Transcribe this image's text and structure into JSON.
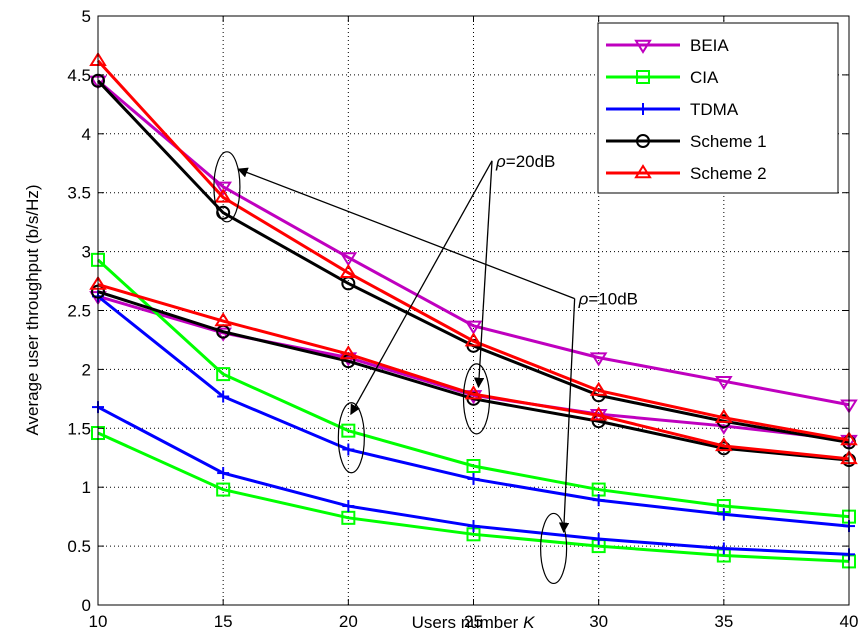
{
  "chart_data": {
    "type": "line",
    "xlabel": "Users number K",
    "xlabel_parts": [
      "Users number ",
      "K"
    ],
    "ylabel": "Average user throughput (b/s/Hz)",
    "xlim": [
      10,
      40
    ],
    "ylim": [
      0,
      5
    ],
    "xticks": [
      10,
      15,
      20,
      25,
      30,
      35,
      40
    ],
    "yticks": [
      0,
      0.5,
      1,
      1.5,
      2,
      2.5,
      3,
      3.5,
      4,
      4.5,
      5
    ],
    "ytick_labels": [
      "0",
      "0.5",
      "1",
      "1.5",
      "2",
      "2.5",
      "3",
      "3.5",
      "4",
      "4.5",
      "5"
    ],
    "grid": true,
    "legend_position": "top-right",
    "x": [
      10,
      15,
      20,
      25,
      30,
      35,
      40
    ],
    "series": [
      {
        "name": "BEIA",
        "color": "#bf00bf",
        "marker": "triangle-down",
        "group": "20dB",
        "values": [
          4.45,
          3.55,
          2.95,
          2.37,
          2.1,
          1.9,
          1.7
        ]
      },
      {
        "name": "BEIA",
        "color": "#bf00bf",
        "marker": "triangle-down",
        "group": "10dB",
        "values": [
          2.62,
          2.31,
          2.1,
          1.78,
          1.62,
          1.52,
          1.4
        ]
      },
      {
        "name": "CIA",
        "color": "#00ff00",
        "marker": "square",
        "group": "20dB",
        "values": [
          2.93,
          1.96,
          1.48,
          1.18,
          0.98,
          0.84,
          0.75
        ]
      },
      {
        "name": "CIA",
        "color": "#00ff00",
        "marker": "square",
        "group": "10dB",
        "values": [
          1.46,
          0.98,
          0.74,
          0.6,
          0.5,
          0.42,
          0.37
        ]
      },
      {
        "name": "TDMA",
        "color": "#0000ff",
        "marker": "plus",
        "group": "20dB",
        "values": [
          2.62,
          1.77,
          1.32,
          1.07,
          0.89,
          0.77,
          0.67
        ]
      },
      {
        "name": "TDMA",
        "color": "#0000ff",
        "marker": "plus",
        "group": "10dB",
        "values": [
          1.68,
          1.12,
          0.84,
          0.67,
          0.56,
          0.48,
          0.43
        ]
      },
      {
        "name": "Scheme 1",
        "color": "#000000",
        "marker": "circle",
        "group": "20dB",
        "values": [
          4.45,
          3.33,
          2.73,
          2.2,
          1.78,
          1.56,
          1.38
        ]
      },
      {
        "name": "Scheme 1",
        "color": "#000000",
        "marker": "circle",
        "group": "10dB",
        "values": [
          2.66,
          2.32,
          2.07,
          1.75,
          1.56,
          1.33,
          1.23
        ]
      },
      {
        "name": "Scheme 2",
        "color": "#ff0000",
        "marker": "triangle-up",
        "group": "20dB",
        "values": [
          4.62,
          3.46,
          2.82,
          2.24,
          1.82,
          1.59,
          1.4
        ]
      },
      {
        "name": "Scheme 2",
        "color": "#ff0000",
        "marker": "triangle-up",
        "group": "10dB",
        "values": [
          2.72,
          2.41,
          2.13,
          1.79,
          1.61,
          1.35,
          1.24
        ]
      }
    ],
    "legend": [
      {
        "name": "BEIA",
        "color": "#bf00bf",
        "marker": "triangle-down"
      },
      {
        "name": "CIA",
        "color": "#00ff00",
        "marker": "square"
      },
      {
        "name": "TDMA",
        "color": "#0000ff",
        "marker": "plus"
      },
      {
        "name": "Scheme 1",
        "color": "#000000",
        "marker": "circle"
      },
      {
        "name": "Scheme 2",
        "color": "#ff0000",
        "marker": "triangle-up"
      }
    ],
    "annotations": [
      {
        "text": "ρ=20dB",
        "symbol": "ρ",
        "rest": "=20dB",
        "x": 25.9,
        "y": 3.72,
        "ellipses": [
          {
            "x": 20.12,
            "y": 1.42
          },
          {
            "x": 25.12,
            "y": 1.75
          }
        ],
        "arrows": [
          {
            "x": 20.1,
            "y": 1.62
          },
          {
            "x": 25.2,
            "y": 1.85
          }
        ]
      },
      {
        "text": "ρ=10dB",
        "symbol": "ρ",
        "rest": "=10dB",
        "x": 29.2,
        "y": 2.55,
        "ellipses": [
          {
            "x": 15.15,
            "y": 3.55
          },
          {
            "x": 28.2,
            "y": 0.48
          }
        ],
        "arrows": [
          {
            "x": 15.6,
            "y": 3.7
          },
          {
            "x": 28.6,
            "y": 0.62
          }
        ]
      }
    ]
  }
}
